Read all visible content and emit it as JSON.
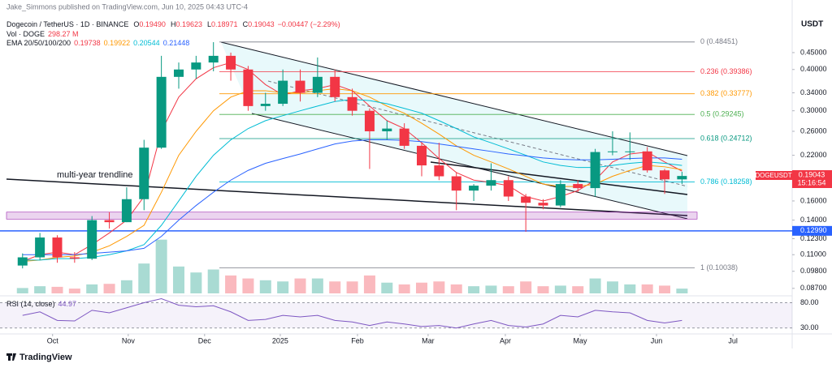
{
  "header": {
    "published": "Jake_Simmons published on TradingView.com, Jun 10, 2025 04:43 UTC-4",
    "symbol": "Dogecoin / TetherUS · 1D · BINANCE",
    "ohlc": [
      {
        "k": "O",
        "v": "0.19490"
      },
      {
        "k": "H",
        "v": "0.19623"
      },
      {
        "k": "L",
        "v": "0.18971"
      },
      {
        "k": "C",
        "v": "0.19043"
      }
    ],
    "change": "−0.00447 (−2.29%)",
    "vol_label": "Vol · DOGE",
    "vol_value": "298.27 M",
    "ema_label": "EMA 20/50/100/200",
    "ema_values": [
      "0.19738",
      "0.19922",
      "0.20544",
      "0.21448"
    ],
    "currency": "USDT",
    "ticker": "DOGEUSDT",
    "last_price": "0.19043",
    "countdown": "15:16:54",
    "trendline_label": "multi-year trendline",
    "rsi_label": "RSI (14, close)",
    "rsi_value": "44.97",
    "brand": "TradingView"
  },
  "chart_data": {
    "type": "candlestick",
    "log_scale": true,
    "ylim": [
      0.084,
      0.518
    ],
    "yticks": [
      {
        "value": 0.45,
        "label": "0.45000"
      },
      {
        "value": 0.4,
        "label": "0.40000"
      },
      {
        "value": 0.34,
        "label": "0.34000"
      },
      {
        "value": 0.3,
        "label": "0.30000"
      },
      {
        "value": 0.26,
        "label": "0.26000"
      },
      {
        "value": 0.22,
        "label": "0.22000"
      },
      {
        "value": 0.16,
        "label": "0.16000"
      },
      {
        "value": 0.14,
        "label": "0.14000"
      },
      {
        "value": 0.123,
        "label": "0.12300"
      },
      {
        "value": 0.11,
        "label": "0.11000"
      },
      {
        "value": 0.098,
        "label": "0.09800"
      },
      {
        "value": 0.087,
        "label": "0.08700"
      }
    ],
    "xlim": [
      -1.3,
      44.35
    ],
    "xticks": [
      {
        "value": 1.73,
        "label": "Oct"
      },
      {
        "value": 6.09,
        "label": "Nov"
      },
      {
        "value": 10.49,
        "label": "Dec"
      },
      {
        "value": 14.85,
        "label": "2025"
      },
      {
        "value": 19.3,
        "label": "Feb"
      },
      {
        "value": 23.37,
        "label": "Mar"
      },
      {
        "value": 27.82,
        "label": "Apr"
      },
      {
        "value": 32.13,
        "label": "May"
      },
      {
        "value": 36.53,
        "label": "Jun"
      },
      {
        "value": 40.94,
        "label": "Jul"
      }
    ],
    "up_color": "#089981",
    "down_color": "#f23645",
    "open": [
      0.102,
      0.108,
      0.124,
      0.108,
      0.107,
      0.14,
      0.138,
      0.162,
      0.232,
      0.38,
      0.4,
      0.42,
      0.44,
      0.4,
      0.31,
      0.315,
      0.37,
      0.34,
      0.38,
      0.33,
      0.3,
      0.26,
      0.265,
      0.235,
      0.205,
      0.19,
      0.172,
      0.178,
      0.185,
      0.165,
      0.158,
      0.155,
      0.18,
      0.175,
      0.225,
      0.226,
      0.226,
      0.198,
      0.186
    ],
    "high": [
      0.111,
      0.128,
      0.126,
      0.112,
      0.144,
      0.148,
      0.176,
      0.245,
      0.44,
      0.42,
      0.44,
      0.484,
      0.45,
      0.41,
      0.34,
      0.4,
      0.4,
      0.435,
      0.4,
      0.35,
      0.305,
      0.28,
      0.275,
      0.24,
      0.24,
      0.195,
      0.18,
      0.208,
      0.19,
      0.168,
      0.162,
      0.185,
      0.185,
      0.23,
      0.26,
      0.258,
      0.233,
      0.2,
      0.196
    ],
    "low": [
      0.1,
      0.106,
      0.104,
      0.104,
      0.106,
      0.132,
      0.138,
      0.15,
      0.23,
      0.35,
      0.375,
      0.395,
      0.37,
      0.3,
      0.3,
      0.31,
      0.32,
      0.33,
      0.32,
      0.29,
      0.2,
      0.245,
      0.23,
      0.19,
      0.185,
      0.15,
      0.16,
      0.172,
      0.16,
      0.129,
      0.151,
      0.153,
      0.17,
      0.165,
      0.22,
      0.213,
      0.195,
      0.168,
      0.18
    ],
    "close": [
      0.108,
      0.124,
      0.108,
      0.107,
      0.14,
      0.138,
      0.162,
      0.232,
      0.38,
      0.4,
      0.42,
      0.44,
      0.4,
      0.31,
      0.315,
      0.37,
      0.34,
      0.38,
      0.33,
      0.3,
      0.26,
      0.265,
      0.235,
      0.205,
      0.19,
      0.172,
      0.178,
      0.185,
      0.165,
      0.158,
      0.155,
      0.18,
      0.175,
      0.225,
      0.226,
      0.226,
      0.198,
      0.186,
      0.19043
    ],
    "volume": [
      900,
      1200,
      1100,
      800,
      1500,
      1600,
      2200,
      5000,
      9000,
      4500,
      3500,
      4000,
      3000,
      2500,
      2200,
      2000,
      2500,
      2500,
      2000,
      2000,
      3000,
      1800,
      1500,
      1800,
      2000,
      1500,
      1200,
      1300,
      1200,
      2000,
      1200,
      1300,
      1200,
      2500,
      2000,
      1500,
      1500,
      1300,
      800
    ],
    "volume_lim": [
      0,
      9500
    ],
    "series": [
      {
        "name": "EMA 20",
        "color": "#f23645",
        "values": [
          0.105,
          0.11,
          0.112,
          0.11,
          0.118,
          0.128,
          0.14,
          0.165,
          0.26,
          0.33,
          0.375,
          0.405,
          0.42,
          0.4,
          0.36,
          0.335,
          0.345,
          0.35,
          0.36,
          0.345,
          0.31,
          0.28,
          0.265,
          0.24,
          0.215,
          0.195,
          0.185,
          0.182,
          0.178,
          0.165,
          0.16,
          0.165,
          0.172,
          0.185,
          0.21,
          0.222,
          0.225,
          0.21,
          0.197
        ]
      },
      {
        "name": "EMA 50",
        "color": "#ff9800",
        "values": [
          0.105,
          0.106,
          0.108,
          0.109,
          0.112,
          0.117,
          0.125,
          0.135,
          0.17,
          0.22,
          0.26,
          0.3,
          0.33,
          0.345,
          0.345,
          0.34,
          0.34,
          0.345,
          0.35,
          0.345,
          0.33,
          0.31,
          0.295,
          0.275,
          0.255,
          0.235,
          0.22,
          0.21,
          0.2,
          0.19,
          0.18,
          0.177,
          0.177,
          0.18,
          0.19,
          0.198,
          0.205,
          0.203,
          0.199
        ]
      },
      {
        "name": "EMA 100",
        "color": "#00bcd4",
        "values": [
          0.106,
          0.106,
          0.107,
          0.107,
          0.108,
          0.11,
          0.113,
          0.118,
          0.135,
          0.16,
          0.19,
          0.22,
          0.245,
          0.265,
          0.28,
          0.29,
          0.3,
          0.31,
          0.32,
          0.325,
          0.322,
          0.315,
          0.305,
          0.295,
          0.28,
          0.265,
          0.25,
          0.24,
          0.23,
          0.22,
          0.21,
          0.205,
          0.202,
          0.202,
          0.205,
          0.208,
          0.21,
          0.208,
          0.205
        ]
      },
      {
        "name": "EMA 200",
        "color": "#2962ff",
        "values": [
          0.11,
          0.11,
          0.11,
          0.11,
          0.111,
          0.112,
          0.113,
          0.115,
          0.125,
          0.14,
          0.155,
          0.17,
          0.185,
          0.198,
          0.208,
          0.215,
          0.222,
          0.23,
          0.238,
          0.243,
          0.245,
          0.245,
          0.244,
          0.242,
          0.238,
          0.234,
          0.23,
          0.226,
          0.222,
          0.219,
          0.216,
          0.214,
          0.213,
          0.213,
          0.214,
          0.215,
          0.216,
          0.216,
          0.214
        ]
      }
    ],
    "fib_levels": [
      {
        "label": "0 (0.48451)",
        "price": 0.48451,
        "color": "#787b86"
      },
      {
        "label": "0.236 (0.39386)",
        "price": 0.39386,
        "color": "#f23645"
      },
      {
        "label": "0.382 (0.33777)",
        "price": 0.33777,
        "color": "#ff9800"
      },
      {
        "label": "0.5 (0.29245)",
        "price": 0.29245,
        "color": "#4caf50"
      },
      {
        "label": "0.618 (0.24712)",
        "price": 0.24712,
        "color": "#089981"
      },
      {
        "label": "0.786 (0.18258)",
        "price": 0.18258,
        "color": "#00bcd4"
      },
      {
        "label": "1 (0.10038)",
        "price": 0.10038,
        "color": "#787b86"
      }
    ],
    "support_line": {
      "price": 0.1299,
      "label": "0.12990",
      "color": "#2962ff"
    },
    "zone": [
      0.141,
      0.148
    ],
    "rsi": {
      "values": [
        55,
        62,
        45,
        44,
        65,
        60,
        70,
        80,
        88,
        75,
        72,
        74,
        62,
        45,
        47,
        55,
        52,
        55,
        45,
        42,
        35,
        42,
        38,
        33,
        35,
        30,
        38,
        45,
        35,
        32,
        38,
        55,
        52,
        65,
        62,
        60,
        45,
        40,
        45
      ],
      "color": "#7e57c2",
      "ylim": [
        20,
        92
      ],
      "yticks": [
        {
          "value": 80,
          "label": "80.00"
        },
        {
          "value": 30,
          "label": "30.00"
        }
      ]
    }
  }
}
